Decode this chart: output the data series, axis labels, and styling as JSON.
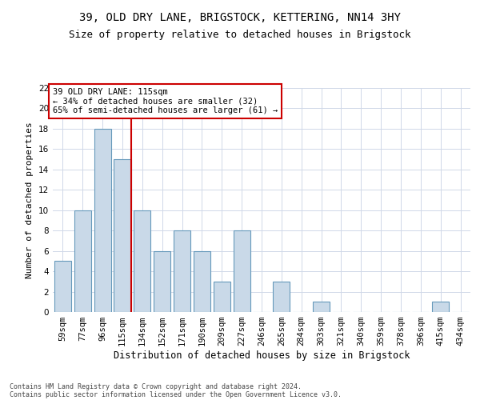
{
  "title_line1": "39, OLD DRY LANE, BRIGSTOCK, KETTERING, NN14 3HY",
  "title_line2": "Size of property relative to detached houses in Brigstock",
  "xlabel": "Distribution of detached houses by size in Brigstock",
  "ylabel": "Number of detached properties",
  "categories": [
    "59sqm",
    "77sqm",
    "96sqm",
    "115sqm",
    "134sqm",
    "152sqm",
    "171sqm",
    "190sqm",
    "209sqm",
    "227sqm",
    "246sqm",
    "265sqm",
    "284sqm",
    "303sqm",
    "321sqm",
    "340sqm",
    "359sqm",
    "378sqm",
    "396sqm",
    "415sqm",
    "434sqm"
  ],
  "values": [
    5,
    10,
    18,
    15,
    10,
    6,
    8,
    6,
    3,
    8,
    0,
    3,
    0,
    1,
    0,
    0,
    0,
    0,
    0,
    1,
    0
  ],
  "bar_color": "#c9d9e8",
  "bar_edge_color": "#6699bb",
  "highlight_index": 3,
  "highlight_line_color": "#cc0000",
  "ylim": [
    0,
    22
  ],
  "yticks": [
    0,
    2,
    4,
    6,
    8,
    10,
    12,
    14,
    16,
    18,
    20,
    22
  ],
  "annotation_line1": "39 OLD DRY LANE: 115sqm",
  "annotation_line2": "← 34% of detached houses are smaller (32)",
  "annotation_line3": "65% of semi-detached houses are larger (61) →",
  "annotation_box_color": "#ffffff",
  "annotation_box_edge": "#cc0000",
  "footer_line1": "Contains HM Land Registry data © Crown copyright and database right 2024.",
  "footer_line2": "Contains public sector information licensed under the Open Government Licence v3.0.",
  "bg_color": "#ffffff",
  "grid_color": "#d0d8e8",
  "title_fontsize": 10,
  "subtitle_fontsize": 9,
  "tick_fontsize": 7.5,
  "ylabel_fontsize": 8,
  "xlabel_fontsize": 8.5
}
